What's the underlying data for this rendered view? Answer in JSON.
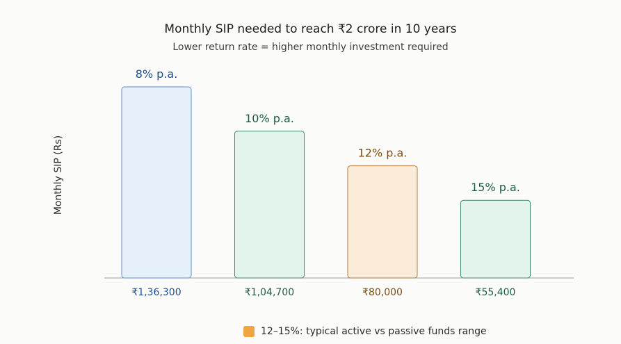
{
  "chart_data": {
    "type": "bar",
    "title": "Monthly SIP needed to reach ₹2 crore in 10 years",
    "subtitle": "Lower return rate = higher monthly investment required",
    "xlabel": "",
    "ylabel": "Monthly SIP (Rs)",
    "ylim": [
      0,
      160000
    ],
    "grid": false,
    "categories": [
      "₹1,36,300",
      "₹1,04,700",
      "₹80,000",
      "₹55,400"
    ],
    "values": [
      136300,
      104700,
      80000,
      55400
    ],
    "bar_labels": [
      "8% p.a.",
      "10% p.a.",
      "12% p.a.",
      "15% p.a."
    ],
    "bar_styles": [
      {
        "fill": "#e6f0fb",
        "stroke": "#5b8ed3",
        "label_color": "#1f4f8a"
      },
      {
        "fill": "#e3f4ec",
        "stroke": "#3f8a68",
        "label_color": "#1d5c44"
      },
      {
        "fill": "#fbecd9",
        "stroke": "#b07a3c",
        "label_color": "#7a4d12"
      },
      {
        "fill": "#e3f4ec",
        "stroke": "#3f8a68",
        "label_color": "#1d5c44"
      }
    ],
    "legend": {
      "placement": "bottom-center",
      "items": [
        {
          "label": "12–15%: typical active vs passive funds range",
          "color": "#f0a540"
        }
      ]
    },
    "axis_color": "#9c9c9c"
  }
}
